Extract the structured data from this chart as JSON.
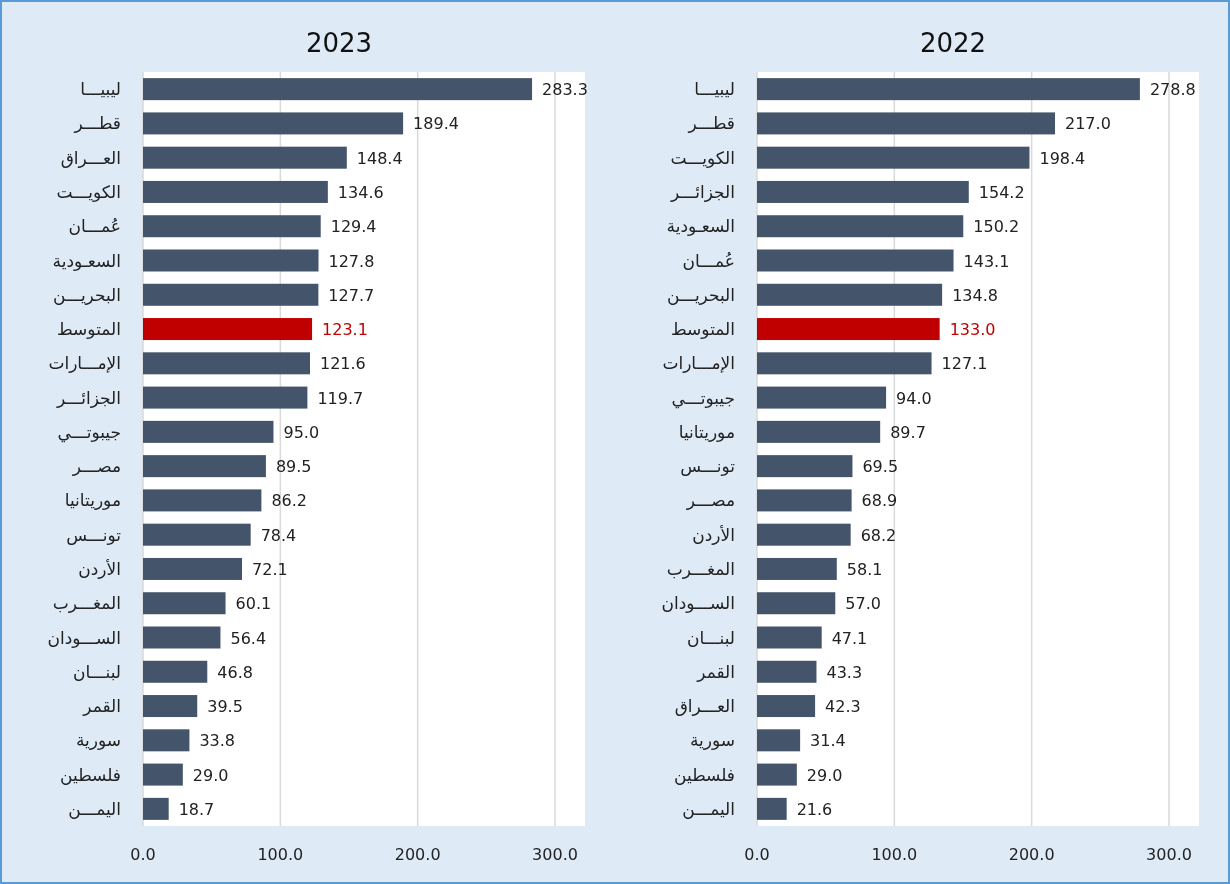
{
  "chart_data": [
    {
      "type": "bar",
      "orientation": "horizontal",
      "title": "2023",
      "categories": [
        "ليبيـــا",
        "قطـــر",
        "العـــراق",
        "الكويـــت",
        "عُمـــان",
        "السعـودية",
        "البحريـــن",
        "المتوسط",
        "الإمـــارات",
        "الجزائـــر",
        "جيبوتـــي",
        "مصـــر",
        "موريتانيا",
        "تونـــس",
        "الأردن",
        "المغـــرب",
        "الســـودان",
        "لبنـــان",
        "القمر",
        "سورية",
        "فلسطين",
        "اليمـــن"
      ],
      "values": [
        283.3,
        189.4,
        148.4,
        134.6,
        129.4,
        127.8,
        127.7,
        123.1,
        121.6,
        119.7,
        95.0,
        89.5,
        86.2,
        78.4,
        72.1,
        60.1,
        56.4,
        46.8,
        39.5,
        33.8,
        29.0,
        18.7
      ],
      "value_labels": [
        "283.3",
        "189.4",
        "148.4",
        "134.6",
        "129.4",
        "127.8",
        "127.7",
        "123.1",
        "121.6",
        "119.7",
        "95.0",
        "89.5",
        "86.2",
        "78.4",
        "72.1",
        "60.1",
        "56.4",
        "46.8",
        "39.5",
        "33.8",
        "29.0",
        "18.7"
      ],
      "colors": [
        "#44546a",
        "#44546a",
        "#44546a",
        "#44546a",
        "#44546a",
        "#44546a",
        "#44546a",
        "#c00000",
        "#44546a",
        "#44546a",
        "#44546a",
        "#44546a",
        "#44546a",
        "#44546a",
        "#44546a",
        "#44546a",
        "#44546a",
        "#44546a",
        "#44546a",
        "#44546a",
        "#44546a",
        "#44546a"
      ],
      "xlim": [
        0,
        300
      ],
      "xticks": [
        {
          "value": 0,
          "label": "0.0"
        },
        {
          "value": 100,
          "label": "100.0"
        },
        {
          "value": 200,
          "label": "200.0"
        },
        {
          "value": 300,
          "label": "300.0"
        }
      ],
      "grid": "x"
    },
    {
      "type": "bar",
      "orientation": "horizontal",
      "title": "2022",
      "categories": [
        "ليبيـــا",
        "قطـــر",
        "الكويـــت",
        "الجزائـــر",
        "السعـودية",
        "عُمـــان",
        "البحريـــن",
        "المتوسط",
        "الإمـــارات",
        "جيبوتـــي",
        "موريتانيا",
        "تونـــس",
        "مصـــر",
        "الأردن",
        "المغـــرب",
        "الســـودان",
        "لبنـــان",
        "القمر",
        "العـــراق",
        "سورية",
        "فلسطين",
        "اليمـــن"
      ],
      "values": [
        278.8,
        217.0,
        198.4,
        154.2,
        150.2,
        143.1,
        134.8,
        133.0,
        127.1,
        94.0,
        89.7,
        69.5,
        68.9,
        68.2,
        58.1,
        57.0,
        47.1,
        43.3,
        42.3,
        31.4,
        29.0,
        21.6
      ],
      "value_labels": [
        "278.8",
        "217.0",
        "198.4",
        "154.2",
        "150.2",
        "143.1",
        "134.8",
        "133.0",
        "127.1",
        "94.0",
        "89.7",
        "69.5",
        "68.9",
        "68.2",
        "58.1",
        "57.0",
        "47.1",
        "43.3",
        "42.3",
        "31.4",
        "29.0",
        "21.6"
      ],
      "colors": [
        "#44546a",
        "#44546a",
        "#44546a",
        "#44546a",
        "#44546a",
        "#44546a",
        "#44546a",
        "#c00000",
        "#44546a",
        "#44546a",
        "#44546a",
        "#44546a",
        "#44546a",
        "#44546a",
        "#44546a",
        "#44546a",
        "#44546a",
        "#44546a",
        "#44546a",
        "#44546a",
        "#44546a",
        "#44546a"
      ],
      "xlim": [
        0,
        300
      ],
      "xticks": [
        {
          "value": 0,
          "label": "0.0"
        },
        {
          "value": 100,
          "label": "100.0"
        },
        {
          "value": 200,
          "label": "200.0"
        },
        {
          "value": 300,
          "label": "300.0"
        }
      ],
      "grid": "x"
    }
  ]
}
